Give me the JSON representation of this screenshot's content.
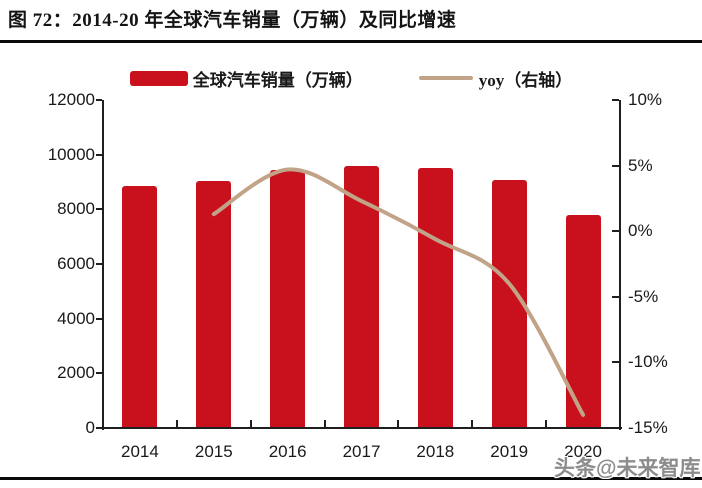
{
  "figure": {
    "title": "图 72：2014-20 年全球汽车销量（万辆）及同比增速",
    "watermark": "头条@未来智库"
  },
  "colors": {
    "bar": "#C9111E",
    "line": "#C1A487",
    "axis": "#1f1f1f",
    "divider": "#0a0a0a",
    "watermark": "#8c8c8c"
  },
  "chart_data": {
    "type": "bar",
    "title": "图 72：2014-20 年全球汽车销量（万辆）及同比增速",
    "categories": [
      "2014",
      "2015",
      "2016",
      "2017",
      "2018",
      "2019",
      "2020"
    ],
    "series": [
      {
        "name": "全球汽车销量（万辆）",
        "type": "bar",
        "axis": "left",
        "color": "#C9111E",
        "values": [
          8860,
          9030,
          9450,
          9600,
          9510,
          9060,
          7800
        ]
      },
      {
        "name": "yoy（右轴）",
        "type": "line",
        "axis": "right",
        "color": "#C1A487",
        "values": [
          null,
          1.3,
          4.7,
          2.3,
          -0.6,
          -4.0,
          -14.0
        ]
      }
    ],
    "left_axis": {
      "min": 0,
      "max": 12000,
      "tick_step": 2000,
      "ticks": [
        "0",
        "2000",
        "4000",
        "6000",
        "8000",
        "10000",
        "12000"
      ]
    },
    "right_axis": {
      "min": -15,
      "max": 10,
      "tick_step": 5,
      "ticks": [
        "10%",
        "5%",
        "0%",
        "-5%",
        "-10%",
        "-15%"
      ]
    },
    "legend_position": "top",
    "grid": false
  }
}
